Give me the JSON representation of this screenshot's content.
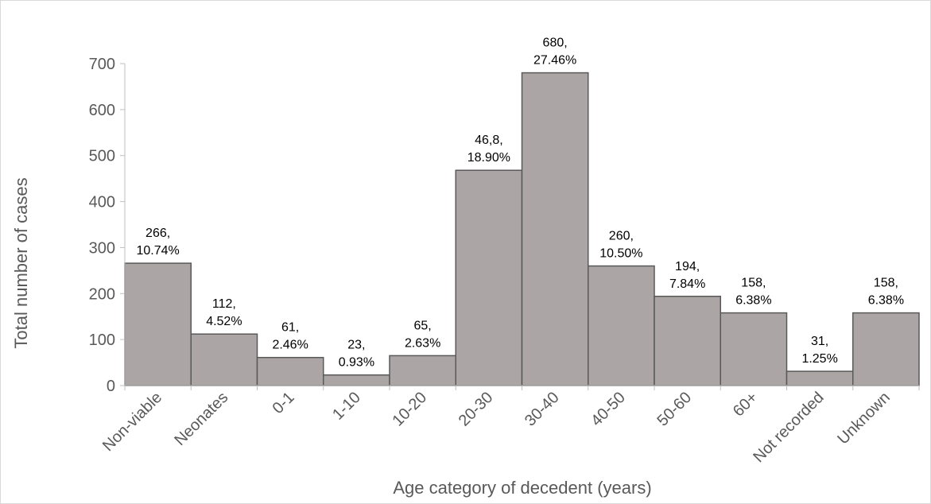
{
  "chart_data": {
    "type": "bar",
    "title": "",
    "xlabel": "Age category of decedent (years)",
    "ylabel": "Total number of cases",
    "categories": [
      "Non-viable",
      "Neonates",
      "0-1",
      "1-10",
      "10-20",
      "20-30",
      "30-40",
      "40-50",
      "50-60",
      "60+",
      "Not recorded",
      "Unknown"
    ],
    "values": [
      266,
      112,
      61,
      23,
      65,
      468,
      680,
      260,
      194,
      158,
      31,
      158
    ],
    "data_labels": [
      [
        "266,",
        "10.74%"
      ],
      [
        "112,",
        "4.52%"
      ],
      [
        "61,",
        "2.46%"
      ],
      [
        "23,",
        "0.93%"
      ],
      [
        "65,",
        "2.63%"
      ],
      [
        "46,8,",
        "18.90%"
      ],
      [
        "680,",
        "27.46%"
      ],
      [
        "260,",
        "10.50%"
      ],
      [
        "194,",
        "7.84%"
      ],
      [
        "158,",
        "6.38%"
      ],
      [
        "31,",
        "1.25%"
      ],
      [
        "158,",
        "6.38%"
      ]
    ],
    "ylim": [
      0,
      700
    ],
    "yticks": [
      0,
      100,
      200,
      300,
      400,
      500,
      600,
      700
    ],
    "grid": false,
    "legend": "none",
    "bar_color": "#aba6a5",
    "bar_edge_color": "#595959"
  }
}
